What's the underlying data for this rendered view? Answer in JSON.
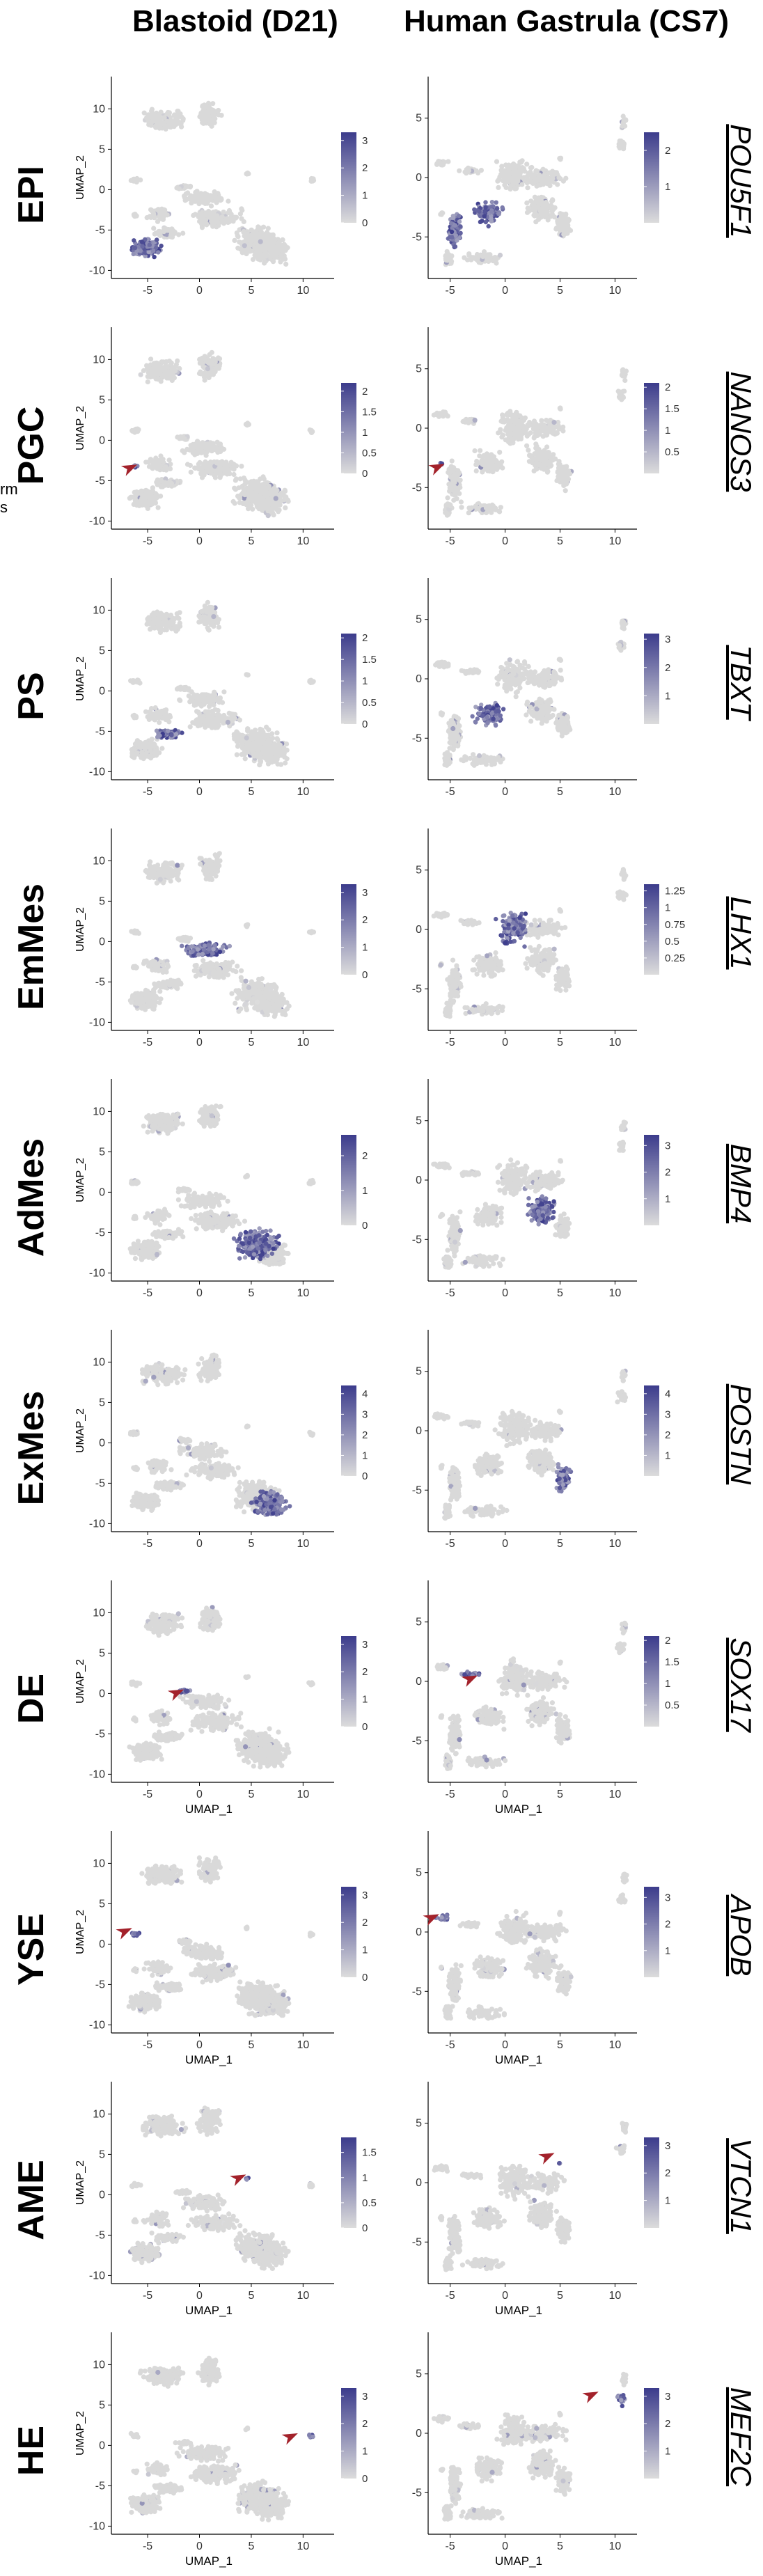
{
  "columns": [
    "Blastoid (D21)",
    "Human Gastrula (CS7)"
  ],
  "stray_text": [
    "rm",
    "s"
  ],
  "colors": {
    "low": "#dcdcdc",
    "high": "#3c3c8c",
    "background_cell": "#d9d9d9",
    "arrow": "#a3222b"
  },
  "chart_data": [
    {
      "row": "EPI",
      "gene": "POU5F1",
      "type": "scatter",
      "xlabel": "",
      "ylabel": "UMAP_2",
      "blastoid": {
        "xticks": [
          -5,
          0,
          5,
          10
        ],
        "yticks": [
          10,
          5,
          0,
          -5,
          -10
        ],
        "xlim": [
          -8.5,
          13
        ],
        "ylim": [
          -11,
          14
        ],
        "legend_ticks": [
          3,
          2,
          1,
          0
        ],
        "legend_max": 3.3,
        "expr_clusters": [
          "epi"
        ],
        "arrow": null
      },
      "gastrula": {
        "xticks": [
          -5,
          0,
          5,
          10
        ],
        "yticks": [
          5,
          0,
          -5
        ],
        "xlim": [
          -7,
          12
        ],
        "ylim": [
          -8.5,
          8.5
        ],
        "legend_ticks": [
          2,
          1
        ],
        "legend_max": 2.5,
        "expr_clusters": [
          "epi",
          "ps"
        ],
        "arrow": null
      }
    },
    {
      "row": "PGC",
      "gene": "NANOS3",
      "type": "scatter",
      "xlabel": "",
      "ylabel": "UMAP_2",
      "blastoid": {
        "xticks": [
          -5,
          0,
          5,
          10
        ],
        "yticks": [
          10,
          5,
          0,
          -5,
          -10
        ],
        "xlim": [
          -8.5,
          13
        ],
        "ylim": [
          -11,
          14
        ],
        "legend_ticks": [
          2.0,
          1.5,
          1.0,
          0.5,
          0.0
        ],
        "legend_max": 2.2,
        "expr_clusters": [
          "pgc"
        ],
        "arrow": {
          "x": -6,
          "y": -3
        }
      },
      "gastrula": {
        "xticks": [
          -5,
          0,
          5,
          10
        ],
        "yticks": [
          5,
          0,
          -5
        ],
        "xlim": [
          -7,
          12
        ],
        "ylim": [
          -8.5,
          8.5
        ],
        "legend_ticks": [
          2.0,
          1.5,
          1.0,
          0.5
        ],
        "legend_max": 2.1,
        "expr_clusters": [
          "pgc"
        ],
        "arrow": {
          "x": -5.5,
          "y": -3
        }
      }
    },
    {
      "row": "PS",
      "gene": "TBXT",
      "type": "scatter",
      "xlabel": "",
      "ylabel": "UMAP_2",
      "blastoid": {
        "xticks": [
          -5,
          0,
          5,
          10
        ],
        "yticks": [
          10,
          5,
          0,
          -5,
          -10
        ],
        "xlim": [
          -8.5,
          13
        ],
        "ylim": [
          -11,
          14
        ],
        "legend_ticks": [
          2.0,
          1.5,
          1.0,
          0.5,
          0.0
        ],
        "legend_max": 2.1,
        "expr_clusters": [
          "ps"
        ],
        "arrow": null
      },
      "gastrula": {
        "xticks": [
          -5,
          0,
          5,
          10
        ],
        "yticks": [
          5,
          0,
          -5
        ],
        "xlim": [
          -7,
          12
        ],
        "ylim": [
          -8.5,
          8.5
        ],
        "legend_ticks": [
          3,
          2,
          1
        ],
        "legend_max": 3.2,
        "expr_clusters": [
          "ps"
        ],
        "arrow": null
      }
    },
    {
      "row": "EmMes",
      "gene": "LHX1",
      "type": "scatter",
      "xlabel": "",
      "ylabel": "UMAP_2",
      "blastoid": {
        "xticks": [
          -5,
          0,
          5,
          10
        ],
        "yticks": [
          10,
          5,
          0,
          -5,
          -10
        ],
        "xlim": [
          -8.5,
          13
        ],
        "ylim": [
          -11,
          14
        ],
        "legend_ticks": [
          3,
          2,
          1,
          0
        ],
        "legend_max": 3.3,
        "expr_clusters": [
          "emmes"
        ],
        "arrow": null
      },
      "gastrula": {
        "xticks": [
          -5,
          0,
          5,
          10
        ],
        "yticks": [
          5,
          0,
          -5
        ],
        "xlim": [
          -7,
          12
        ],
        "ylim": [
          -8.5,
          8.5
        ],
        "legend_ticks": [
          1.25,
          1.0,
          0.75,
          0.5,
          0.25
        ],
        "legend_max": 1.35,
        "expr_clusters": [
          "emmes"
        ],
        "arrow": null
      }
    },
    {
      "row": "AdMes",
      "gene": "BMP4",
      "type": "scatter",
      "xlabel": "",
      "ylabel": "UMAP_2",
      "blastoid": {
        "xticks": [
          -5,
          0,
          5,
          10
        ],
        "yticks": [
          10,
          5,
          0,
          -5,
          -10
        ],
        "xlim": [
          -8.5,
          13
        ],
        "ylim": [
          -11,
          14
        ],
        "legend_ticks": [
          2,
          1,
          0
        ],
        "legend_max": 2.6,
        "expr_clusters": [
          "admes"
        ],
        "arrow": null
      },
      "gastrula": {
        "xticks": [
          -5,
          0,
          5,
          10
        ],
        "yticks": [
          5,
          0,
          -5
        ],
        "xlim": [
          -7,
          12
        ],
        "ylim": [
          -8.5,
          8.5
        ],
        "legend_ticks": [
          3,
          2,
          1
        ],
        "legend_max": 3.4,
        "expr_clusters": [
          "admes"
        ],
        "arrow": null
      }
    },
    {
      "row": "ExMes",
      "gene": "POSTN",
      "type": "scatter",
      "xlabel": "",
      "ylabel": "UMAP_2",
      "blastoid": {
        "xticks": [
          -5,
          0,
          5,
          10
        ],
        "yticks": [
          10,
          5,
          0,
          -5,
          -10
        ],
        "xlim": [
          -8.5,
          13
        ],
        "ylim": [
          -11,
          14
        ],
        "legend_ticks": [
          4,
          3,
          2,
          1,
          0
        ],
        "legend_max": 4.4,
        "expr_clusters": [
          "exmes"
        ],
        "arrow": null
      },
      "gastrula": {
        "xticks": [
          -5,
          0,
          5,
          10
        ],
        "yticks": [
          5,
          0,
          -5
        ],
        "xlim": [
          -7,
          12
        ],
        "ylim": [
          -8.5,
          8.5
        ],
        "legend_ticks": [
          4,
          3,
          2,
          1
        ],
        "legend_max": 4.4,
        "expr_clusters": [
          "exmes"
        ],
        "arrow": null
      }
    },
    {
      "row": "DE",
      "gene": "SOX17",
      "type": "scatter",
      "xlabel": "UMAP_1",
      "ylabel": "UMAP_2",
      "blastoid": {
        "xticks": [
          -5,
          0,
          5,
          10
        ],
        "yticks": [
          10,
          5,
          0,
          -5,
          -10
        ],
        "xlim": [
          -8.5,
          13
        ],
        "ylim": [
          -11,
          14
        ],
        "legend_ticks": [
          3,
          2,
          1,
          0
        ],
        "legend_max": 3.3,
        "expr_clusters": [
          "de"
        ],
        "arrow": {
          "x": -1.5,
          "y": 0.5
        }
      },
      "gastrula": {
        "xticks": [
          -5,
          0,
          5,
          10
        ],
        "yticks": [
          5,
          0,
          -5
        ],
        "xlim": [
          -7,
          12
        ],
        "ylim": [
          -8.5,
          8.5
        ],
        "legend_ticks": [
          2.0,
          1.5,
          1.0,
          0.5
        ],
        "legend_max": 2.1,
        "expr_clusters": [
          "de"
        ],
        "arrow": {
          "x": -2.5,
          "y": 0.5
        }
      }
    },
    {
      "row": "YSE",
      "gene": "APOB",
      "type": "scatter",
      "xlabel": "UMAP_1",
      "ylabel": "UMAP_2",
      "blastoid": {
        "xticks": [
          -5,
          0,
          5,
          10
        ],
        "yticks": [
          10,
          5,
          0,
          -5,
          -10
        ],
        "xlim": [
          -8.5,
          13
        ],
        "ylim": [
          -11,
          14
        ],
        "legend_ticks": [
          3,
          2,
          1,
          0
        ],
        "legend_max": 3.3,
        "expr_clusters": [
          "yse"
        ],
        "arrow": {
          "x": -6.5,
          "y": 2
        }
      },
      "gastrula": {
        "xticks": [
          -5,
          0,
          5,
          10
        ],
        "yticks": [
          5,
          0,
          -5
        ],
        "xlim": [
          -7,
          12
        ],
        "ylim": [
          -8.5,
          8.5
        ],
        "legend_ticks": [
          3,
          2,
          1
        ],
        "legend_max": 3.4,
        "expr_clusters": [
          "yse"
        ],
        "arrow": {
          "x": -6,
          "y": 1.5
        }
      }
    },
    {
      "row": "AME",
      "gene": "VTCN1",
      "type": "scatter",
      "xlabel": "UMAP_1",
      "ylabel": "UMAP_2",
      "blastoid": {
        "xticks": [
          -5,
          0,
          5,
          10
        ],
        "yticks": [
          10,
          5,
          0,
          -5,
          -10
        ],
        "xlim": [
          -8.5,
          13
        ],
        "ylim": [
          -11,
          14
        ],
        "legend_ticks": [
          1.5,
          1.0,
          0.5,
          0.0
        ],
        "legend_max": 1.8,
        "expr_clusters": [
          "ame"
        ],
        "arrow": {
          "x": 4.5,
          "y": 2.5
        }
      },
      "gastrula": {
        "xticks": [
          -5,
          0,
          5,
          10
        ],
        "yticks": [
          5,
          0,
          -5
        ],
        "xlim": [
          -7,
          12
        ],
        "ylim": [
          -8.5,
          8.5
        ],
        "legend_ticks": [
          3,
          2,
          1
        ],
        "legend_max": 3.3,
        "expr_clusters": [
          "ame"
        ],
        "arrow": {
          "x": 4.5,
          "y": 2.5
        }
      }
    },
    {
      "row": "HE",
      "gene": "MEF2C",
      "type": "scatter",
      "xlabel": "UMAP_1",
      "ylabel": "UMAP_2",
      "blastoid": {
        "xticks": [
          -5,
          0,
          5,
          10
        ],
        "yticks": [
          10,
          5,
          0,
          -5,
          -10
        ],
        "xlim": [
          -8.5,
          13
        ],
        "ylim": [
          -11,
          14
        ],
        "legend_ticks": [
          3,
          2,
          1,
          0
        ],
        "legend_max": 3.3,
        "expr_clusters": [
          "he"
        ],
        "arrow": {
          "x": 9.5,
          "y": 1.5
        }
      },
      "gastrula": {
        "xticks": [
          -5,
          0,
          5,
          10
        ],
        "yticks": [
          5,
          0,
          -5
        ],
        "xlim": [
          -7,
          12
        ],
        "ylim": [
          -8.5,
          8.5
        ],
        "legend_ticks": [
          3,
          2,
          1
        ],
        "legend_max": 3.3,
        "expr_clusters": [
          "he"
        ],
        "arrow": {
          "x": 8.5,
          "y": 3.5
        }
      }
    }
  ]
}
